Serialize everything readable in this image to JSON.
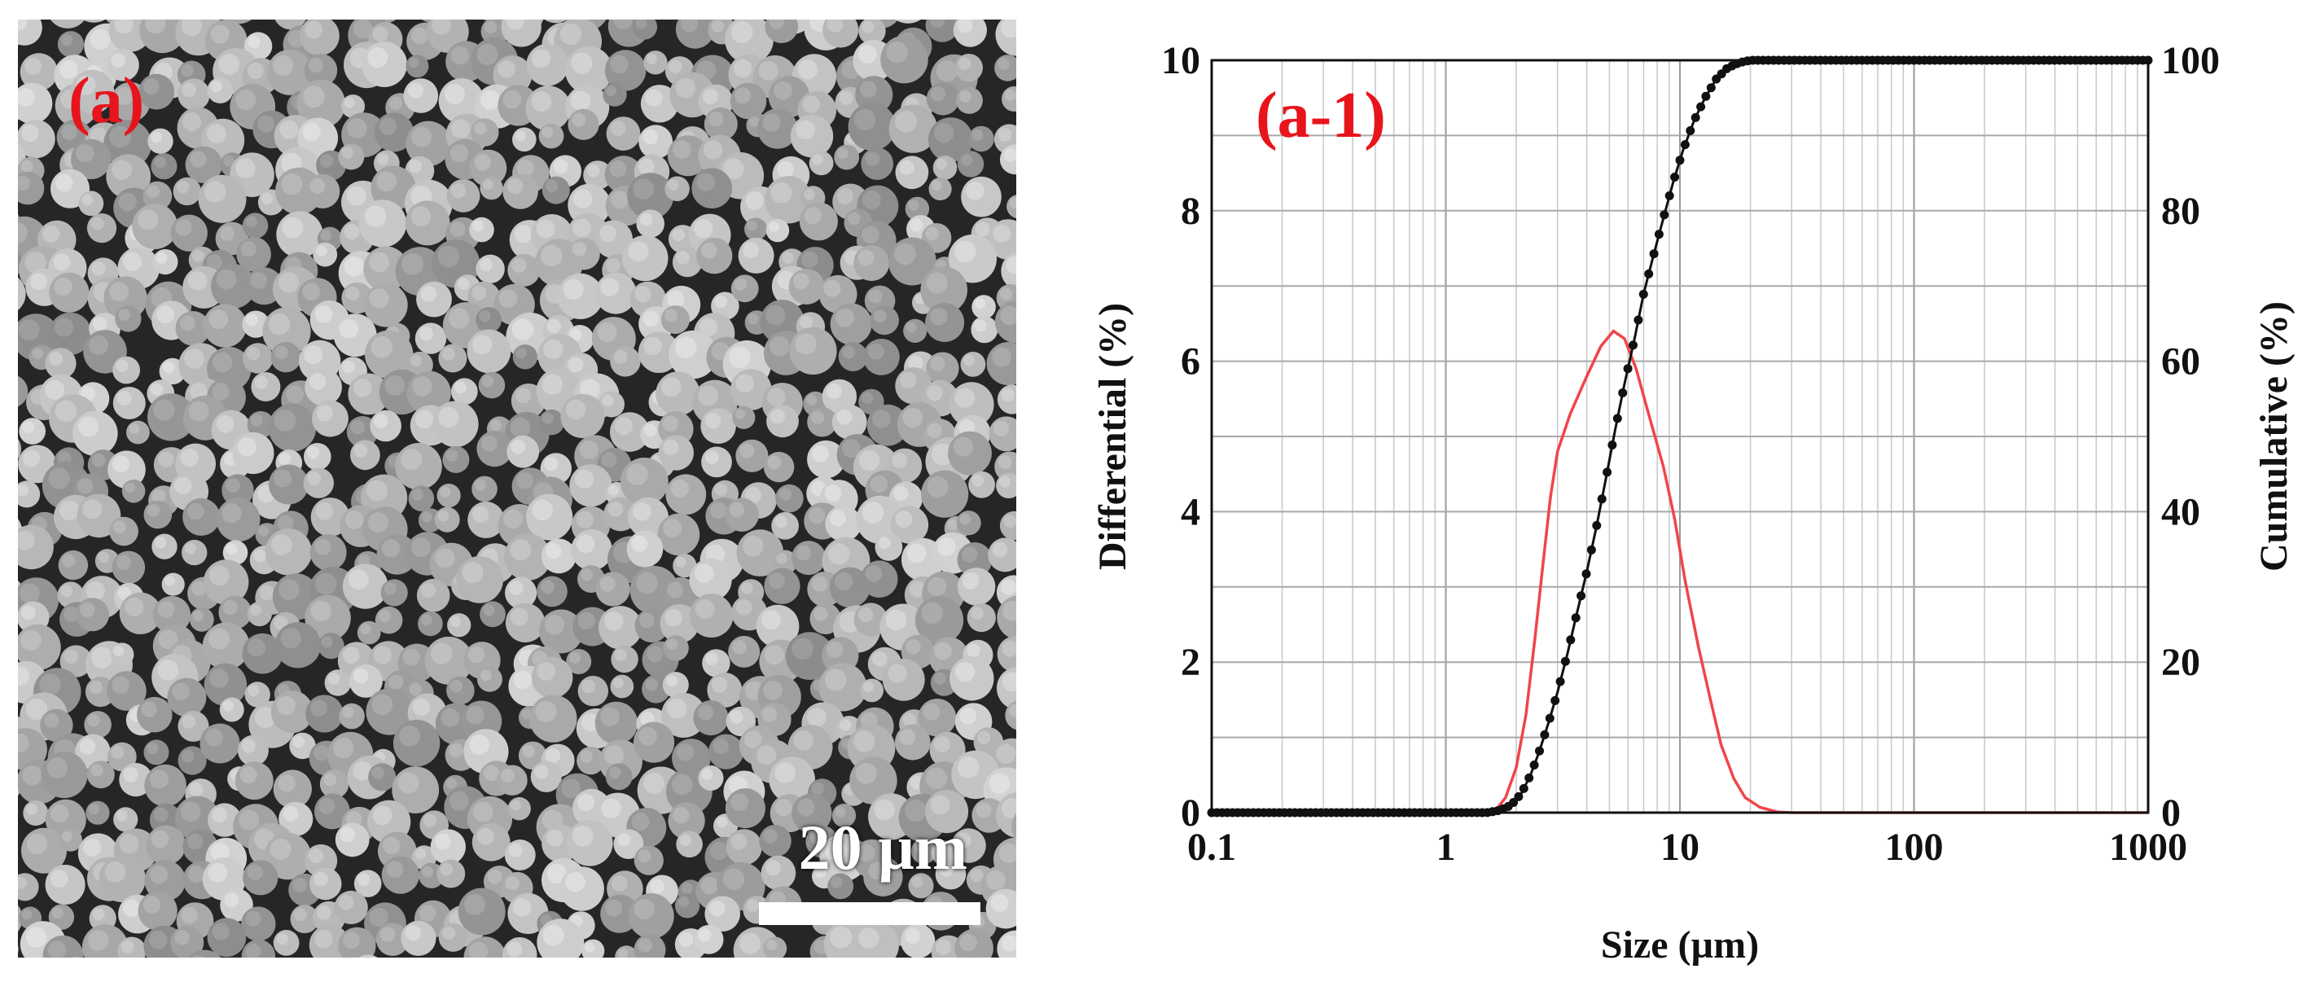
{
  "micrograph": {
    "panel_label": "(a)",
    "scale_bar_label": "20 µm"
  },
  "chart_data": {
    "type": "line",
    "panel_label": "(a-1)",
    "title": "",
    "xlabel": "Size (µm)",
    "ylabel_left": "Differential (%)",
    "ylabel_right": "Cumulative (%)",
    "xscale": "log",
    "xlim": [
      0.1,
      1000
    ],
    "ylim_left": [
      0,
      10
    ],
    "ylim_right": [
      0,
      100
    ],
    "x_ticks": [
      "0.1",
      "1",
      "10",
      "100",
      "1000"
    ],
    "x_tick_values": [
      0.1,
      1,
      10,
      100,
      1000
    ],
    "y_left_ticks": [
      "0",
      "2",
      "4",
      "6",
      "8",
      "10"
    ],
    "y_left_tick_values": [
      0,
      2,
      4,
      6,
      8,
      10
    ],
    "y_right_ticks": [
      "0",
      "20",
      "40",
      "60",
      "80",
      "100"
    ],
    "y_right_tick_values": [
      0,
      20,
      40,
      60,
      80,
      100
    ],
    "grid": true,
    "series": [
      {
        "name": "Differential",
        "axis": "left",
        "color": "#f0454a",
        "style": "line",
        "points": [
          [
            0.1,
            0
          ],
          [
            1.5,
            0
          ],
          [
            1.65,
            0.05
          ],
          [
            1.8,
            0.2
          ],
          [
            2.0,
            0.6
          ],
          [
            2.2,
            1.3
          ],
          [
            2.4,
            2.3
          ],
          [
            2.6,
            3.3
          ],
          [
            2.8,
            4.2
          ],
          [
            3.0,
            4.8
          ],
          [
            3.4,
            5.3
          ],
          [
            4.0,
            5.8
          ],
          [
            4.6,
            6.2
          ],
          [
            5.2,
            6.4
          ],
          [
            5.8,
            6.3
          ],
          [
            6.5,
            5.9
          ],
          [
            7.5,
            5.2
          ],
          [
            8.5,
            4.6
          ],
          [
            9.5,
            3.9
          ],
          [
            10.5,
            3.1
          ],
          [
            12,
            2.2
          ],
          [
            13.5,
            1.5
          ],
          [
            15,
            0.9
          ],
          [
            17,
            0.45
          ],
          [
            19,
            0.2
          ],
          [
            22,
            0.07
          ],
          [
            26,
            0.01
          ],
          [
            30,
            0
          ],
          [
            1000,
            0
          ]
        ]
      },
      {
        "name": "Cumulative",
        "axis": "right",
        "color": "#111111",
        "style": "line-markers",
        "points": [
          [
            0.1,
            0
          ],
          [
            1.5,
            0
          ],
          [
            1.7,
            0.3
          ],
          [
            1.9,
            1
          ],
          [
            2.1,
            2.5
          ],
          [
            2.3,
            5
          ],
          [
            2.5,
            8
          ],
          [
            2.75,
            12
          ],
          [
            3.0,
            16
          ],
          [
            3.3,
            21
          ],
          [
            3.6,
            26
          ],
          [
            4.0,
            32
          ],
          [
            4.4,
            38
          ],
          [
            4.8,
            44
          ],
          [
            5.3,
            51
          ],
          [
            5.8,
            57
          ],
          [
            6.4,
            63
          ],
          [
            7.0,
            69
          ],
          [
            7.7,
            74
          ],
          [
            8.5,
            79
          ],
          [
            9.4,
            84
          ],
          [
            10.3,
            88
          ],
          [
            11.5,
            92
          ],
          [
            12.8,
            95
          ],
          [
            14.3,
            97.5
          ],
          [
            16,
            99
          ],
          [
            18,
            99.7
          ],
          [
            20,
            100
          ],
          [
            1000,
            100
          ]
        ]
      }
    ]
  }
}
